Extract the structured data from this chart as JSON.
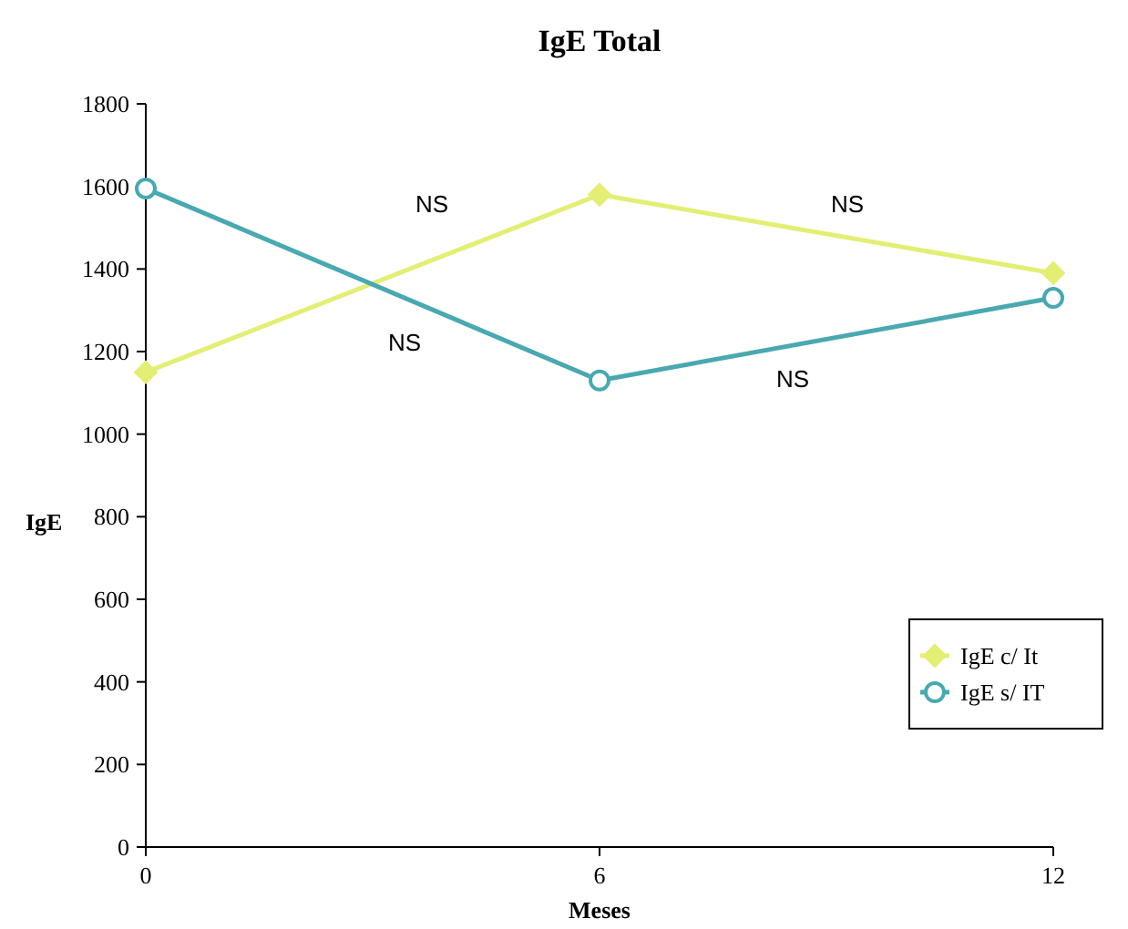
{
  "chart_data": {
    "type": "line",
    "title": "IgE Total",
    "xlabel": "Meses",
    "ylabel": "IgE",
    "x": [
      0,
      6,
      12
    ],
    "xlim": [
      0,
      12
    ],
    "xticks": [
      0,
      6,
      12
    ],
    "ylim": [
      0,
      1800
    ],
    "yticks": [
      0,
      200,
      400,
      600,
      800,
      1000,
      1200,
      1400,
      1600,
      1800
    ],
    "series": [
      {
        "name": "IgE c/ It",
        "color": "#e3ee74",
        "values": [
          1150,
          1580,
          1390
        ],
        "marker": "diamond"
      },
      {
        "name": "IgE s/ IT",
        "color": "#4aa8b0",
        "values": [
          1595,
          1130,
          1330
        ],
        "marker": "circle"
      }
    ],
    "annotations": [
      "NS",
      "NS",
      "NS",
      "NS"
    ],
    "legend": "bottom right",
    "grid": false
  }
}
